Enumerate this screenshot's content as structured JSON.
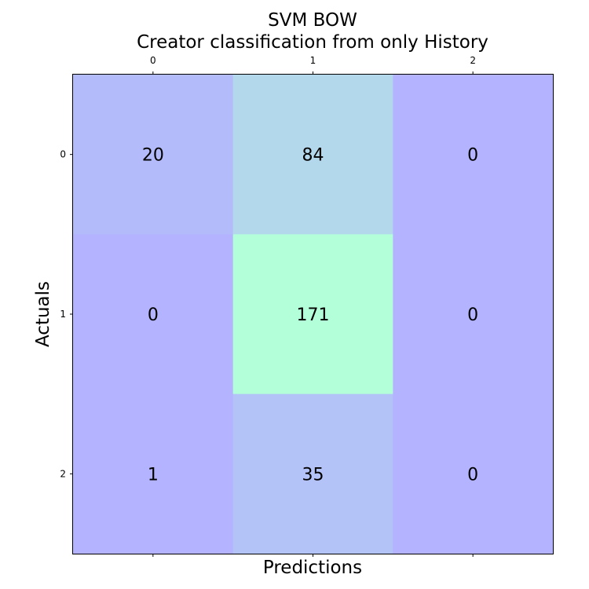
{
  "chart_data": {
    "type": "heatmap",
    "title_lines": [
      "SVM BOW",
      "Creator classification from only History"
    ],
    "xlabel": "Predictions",
    "ylabel": "Actuals",
    "x_categories": [
      "0",
      "1",
      "2"
    ],
    "y_categories": [
      "0",
      "1",
      "2"
    ],
    "matrix": [
      [
        20,
        84,
        0
      ],
      [
        0,
        171,
        0
      ],
      [
        1,
        35,
        0
      ]
    ],
    "matrix_labels": [
      [
        "20",
        "84",
        "0"
      ],
      [
        "0",
        "171",
        "0"
      ],
      [
        "1",
        "35",
        "0"
      ]
    ],
    "value_range": [
      0,
      171
    ],
    "colormap": "winter",
    "alpha": 0.3,
    "x_ticks_position": "top",
    "grid": false
  }
}
